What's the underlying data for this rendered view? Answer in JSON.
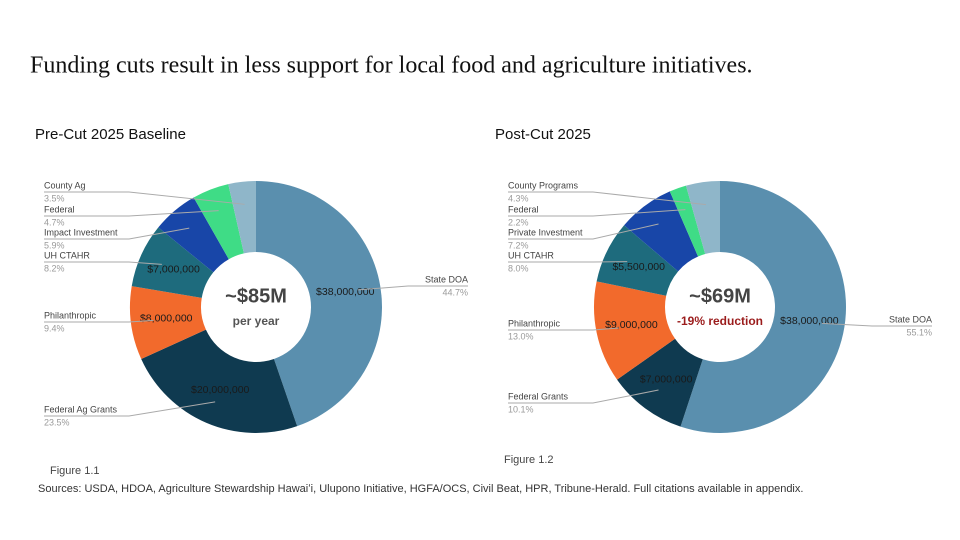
{
  "title": "Funding cuts result in less support for local food and agriculture initiatives.",
  "chart_data": [
    {
      "type": "donut",
      "title": "Pre-Cut 2025 Baseline",
      "categories": [
        "State DOA",
        "Federal Ag Grants",
        "Philanthropic",
        "UH CTAHR",
        "Impact Investment",
        "Federal",
        "County Ag"
      ],
      "values": [
        38000000,
        20000000,
        8000000,
        7000000,
        5000000,
        4000000,
        3000000
      ],
      "value_labels": [
        "$38,000,000",
        "$20,000,000",
        "$8,000,000",
        "$7,000,000",
        null,
        null,
        null
      ],
      "percent_labels": [
        "44.7%",
        "23.5%",
        "9.4%",
        "8.2%",
        "5.9%",
        "4.7%",
        "3.5%"
      ],
      "colors": [
        "#5a8fae",
        "#0f3a50",
        "#f26a2c",
        "#1e6b7d",
        "#1846a8",
        "#3fdc86",
        "#8fb6c9"
      ],
      "center_label": "~$85M",
      "center_sublabel": "per year",
      "figure_label": "Figure 1.1"
    },
    {
      "type": "donut",
      "title": "Post-Cut 2025",
      "categories": [
        "State DOA",
        "Federal Grants",
        "Philanthropic",
        "UH CTAHR",
        "Private Investment",
        "Federal",
        "County Programs"
      ],
      "values": [
        38000000,
        7000000,
        9000000,
        5500000,
        5000000,
        1500000,
        3000000
      ],
      "value_labels": [
        "$38,000,000",
        "$7,000,000",
        "$9,000,000",
        "$5,500,000",
        null,
        null,
        null
      ],
      "percent_labels": [
        "55.1%",
        "10.1%",
        "13.0%",
        "8.0%",
        "7.2%",
        "2.2%",
        "4.3%"
      ],
      "colors": [
        "#5a8fae",
        "#0f3a50",
        "#f26a2c",
        "#1e6b7d",
        "#1846a8",
        "#3fdc86",
        "#8fb6c9"
      ],
      "center_label": "~$69M",
      "center_sublabel": "-19% reduction",
      "figure_label": "Figure 1.2"
    }
  ],
  "sources": "Sources: USDA, HDOA, Agriculture Stewardship Hawaiʻi, Ulupono Initiative, HGFA/OCS, Civil Beat, HPR, Tribune-Herald. Full citations available in appendix."
}
